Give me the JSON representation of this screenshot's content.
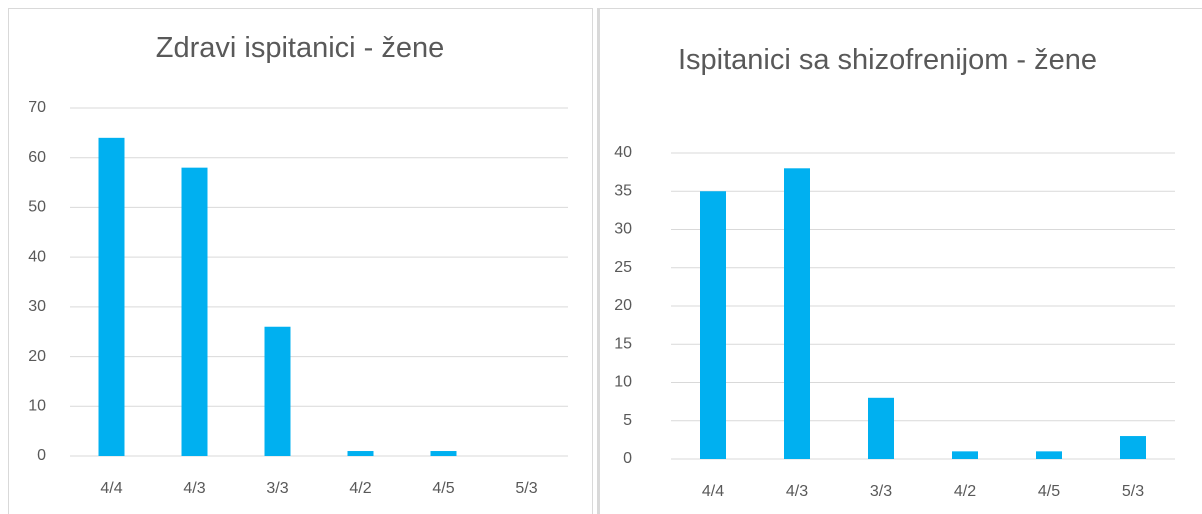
{
  "chart_data": [
    {
      "type": "bar",
      "title": "Zdravi ispitanici - žene",
      "categories": [
        "4/4",
        "4/3",
        "3/3",
        "4/2",
        "4/5",
        "5/3"
      ],
      "values": [
        64,
        58,
        26,
        1,
        1,
        0
      ],
      "color": "#00b0f0",
      "ylim": [
        0,
        70
      ],
      "yticks": [
        0,
        10,
        20,
        30,
        40,
        50,
        60,
        70
      ],
      "grid": true
    },
    {
      "type": "bar",
      "title": "Ispitanici sa shizofrenijom - žene",
      "categories": [
        "4/4",
        "4/3",
        "3/3",
        "4/2",
        "4/5",
        "5/3"
      ],
      "values": [
        35,
        38,
        8,
        1,
        1,
        3
      ],
      "color": "#00b0f0",
      "ylim": [
        0,
        40
      ],
      "yticks": [
        0,
        5,
        10,
        15,
        20,
        25,
        30,
        35,
        40
      ],
      "grid": true
    }
  ]
}
